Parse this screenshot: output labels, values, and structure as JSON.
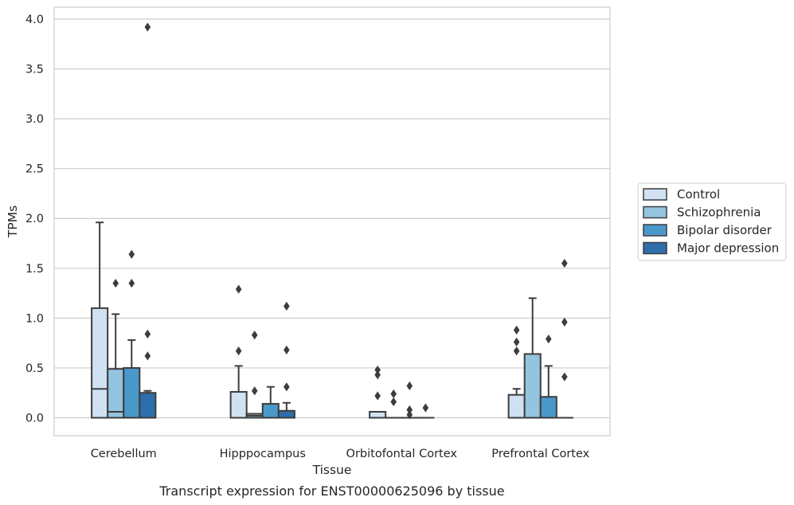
{
  "caption": "Transcript expression for ENST00000625096 by tissue",
  "chart_data": {
    "type": "boxplot",
    "xlabel": "Tissue",
    "ylabel": "TPMs",
    "ylim": [
      -0.18,
      4.12
    ],
    "yticks": [
      "0.0",
      "0.5",
      "1.0",
      "1.5",
      "2.0",
      "2.5",
      "3.0",
      "3.5",
      "4.0"
    ],
    "grid": "horizontal",
    "legend_position": "right",
    "categories": [
      "Cerebellum",
      "Hipppocampus",
      "Orbitofontal Cortex",
      "Prefrontal Cortex"
    ],
    "series": [
      {
        "name": "Control",
        "color": "#d0e1f2",
        "boxes": [
          {
            "q1": 0.0,
            "median": 0.29,
            "q3": 1.1,
            "whisker_low": 0.0,
            "whisker_high": 1.96,
            "outliers": []
          },
          {
            "q1": 0.0,
            "median": 0.0,
            "q3": 0.26,
            "whisker_low": 0.0,
            "whisker_high": 0.52,
            "outliers": [
              0.67,
              1.29
            ]
          },
          {
            "q1": 0.0,
            "median": 0.0,
            "q3": 0.06,
            "whisker_low": 0.0,
            "whisker_high": 0.06,
            "outliers": [
              0.22,
              0.43,
              0.48
            ]
          },
          {
            "q1": 0.0,
            "median": 0.0,
            "q3": 0.23,
            "whisker_low": 0.0,
            "whisker_high": 0.29,
            "outliers": [
              0.67,
              0.76,
              0.88
            ]
          }
        ]
      },
      {
        "name": "Schizophrenia",
        "color": "#94c4df",
        "boxes": [
          {
            "q1": 0.0,
            "median": 0.06,
            "q3": 0.49,
            "whisker_low": 0.0,
            "whisker_high": 1.04,
            "outliers": [
              1.35
            ]
          },
          {
            "q1": 0.0,
            "median": 0.02,
            "q3": 0.04,
            "whisker_low": 0.0,
            "whisker_high": 0.04,
            "outliers": [
              0.27,
              0.83
            ]
          },
          {
            "q1": 0.0,
            "median": 0.0,
            "q3": 0.0,
            "whisker_low": 0.0,
            "whisker_high": 0.0,
            "outliers": [
              0.16,
              0.24
            ]
          },
          {
            "q1": 0.0,
            "median": 0.0,
            "q3": 0.64,
            "whisker_low": 0.0,
            "whisker_high": 1.2,
            "outliers": []
          }
        ]
      },
      {
        "name": "Bipolar disorder",
        "color": "#4a98c9",
        "boxes": [
          {
            "q1": 0.0,
            "median": 0.0,
            "q3": 0.5,
            "whisker_low": 0.0,
            "whisker_high": 0.78,
            "outliers": [
              1.35,
              1.64
            ]
          },
          {
            "q1": 0.0,
            "median": 0.0,
            "q3": 0.14,
            "whisker_low": 0.0,
            "whisker_high": 0.31,
            "outliers": []
          },
          {
            "q1": 0.0,
            "median": 0.0,
            "q3": 0.0,
            "whisker_low": 0.0,
            "whisker_high": 0.0,
            "outliers": [
              0.03,
              0.08,
              0.32
            ]
          },
          {
            "q1": 0.0,
            "median": 0.0,
            "q3": 0.21,
            "whisker_low": 0.0,
            "whisker_high": 0.52,
            "outliers": [
              0.79
            ]
          }
        ]
      },
      {
        "name": "Major depression",
        "color": "#2e6ead",
        "boxes": [
          {
            "q1": 0.0,
            "median": 0.0,
            "q3": 0.25,
            "whisker_low": 0.0,
            "whisker_high": 0.27,
            "outliers": [
              0.62,
              0.84,
              3.92
            ]
          },
          {
            "q1": 0.0,
            "median": 0.0,
            "q3": 0.07,
            "whisker_low": 0.0,
            "whisker_high": 0.15,
            "outliers": [
              0.31,
              0.68,
              1.12
            ]
          },
          {
            "q1": 0.0,
            "median": 0.0,
            "q3": 0.0,
            "whisker_low": 0.0,
            "whisker_high": 0.0,
            "outliers": [
              0.1
            ]
          },
          {
            "q1": 0.0,
            "median": 0.0,
            "q3": 0.0,
            "whisker_low": 0.0,
            "whisker_high": 0.0,
            "outliers": [
              0.41,
              0.96,
              1.55
            ]
          }
        ]
      }
    ]
  }
}
